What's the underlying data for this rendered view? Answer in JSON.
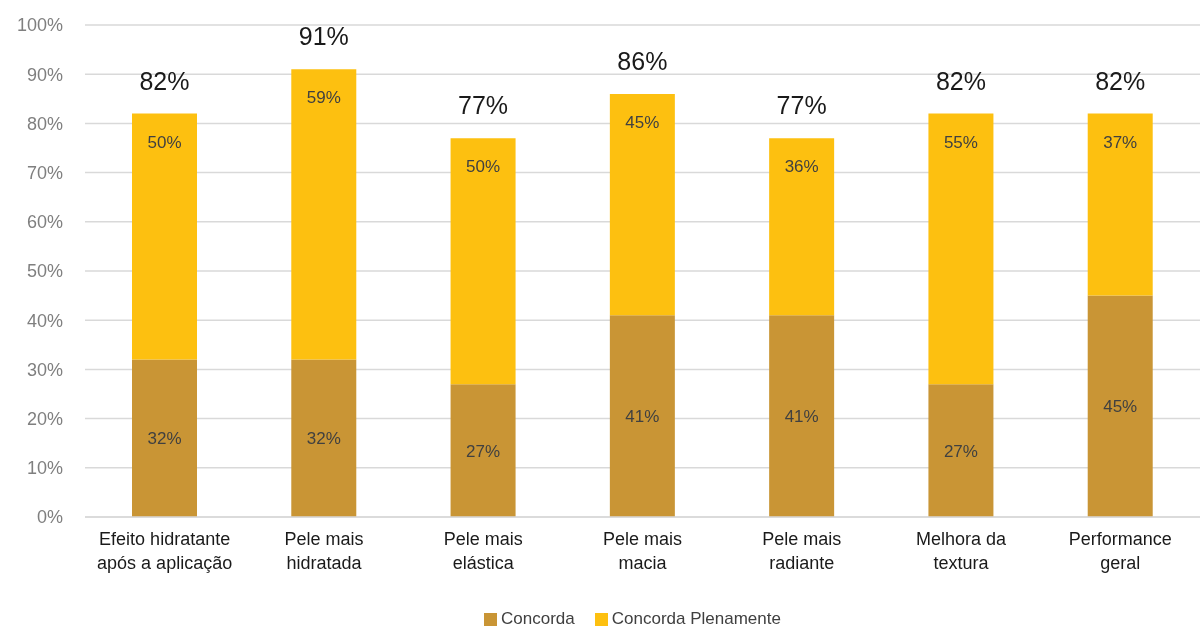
{
  "chart_data": {
    "type": "bar",
    "stacked": true,
    "categories": [
      "Efeito hidratante após a aplicação",
      "Pele mais hidratada",
      "Pele mais elástica",
      "Pele mais macia",
      "Pele mais radiante",
      "Melhora da textura",
      "Performance geral"
    ],
    "series": [
      {
        "name": "Concorda",
        "color": "#c99535",
        "values": [
          32,
          32,
          27,
          41,
          41,
          27,
          45
        ],
        "value_labels": [
          "32%",
          "32%",
          "27%",
          "41%",
          "41%",
          "27%",
          "45%"
        ]
      },
      {
        "name": "Concorda Plenamente",
        "color": "#fdc010",
        "values": [
          50,
          59,
          50,
          45,
          36,
          55,
          37
        ],
        "value_labels": [
          "50%",
          "59%",
          "50%",
          "45%",
          "36%",
          "55%",
          "37%"
        ]
      }
    ],
    "totals": [
      "82%",
      "91%",
      "77%",
      "86%",
      "77%",
      "82%",
      "82%"
    ],
    "ylim": [
      0,
      100
    ],
    "yticks": [
      {
        "value": 0,
        "label": "0%"
      },
      {
        "value": 10,
        "label": "10%"
      },
      {
        "value": 20,
        "label": "20%"
      },
      {
        "value": 30,
        "label": "30%"
      },
      {
        "value": 40,
        "label": "40%"
      },
      {
        "value": 50,
        "label": "50%"
      },
      {
        "value": 60,
        "label": "60%"
      },
      {
        "value": 70,
        "label": "70%"
      },
      {
        "value": 80,
        "label": "80%"
      },
      {
        "value": 90,
        "label": "90%"
      },
      {
        "value": 100,
        "label": "100%"
      }
    ],
    "grid": "y",
    "legend": "bottom"
  }
}
